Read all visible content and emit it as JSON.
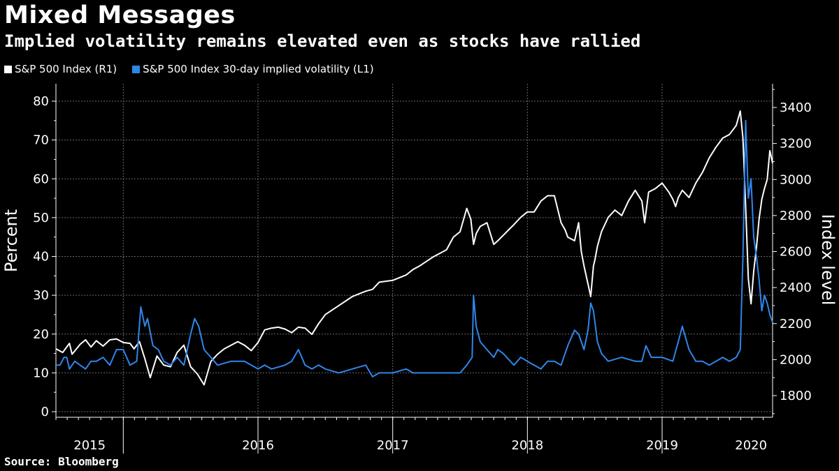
{
  "header": {
    "title": "Mixed Messages",
    "subtitle": "Implied volatility remains elevated even as stocks have rallied"
  },
  "footer": {
    "source": "Source: Bloomberg"
  },
  "colors": {
    "spx": "#ffffff",
    "vix": "#2f86ea",
    "grid": "#6a6a6a",
    "background": "#000000"
  },
  "chart_data": {
    "type": "line",
    "title": "Mixed Messages",
    "subtitle": "Implied volatility remains elevated even as stocks have rallied",
    "xlabel": "",
    "ylabel_left": "Percent",
    "ylabel_right": "Index level",
    "x_range": [
      2015.0,
      2020.32
    ],
    "ylim_left": [
      0,
      85
    ],
    "ylim_right": [
      1700,
      3500
    ],
    "left_ticks": [
      0,
      10,
      20,
      30,
      40,
      50,
      60,
      70,
      80
    ],
    "right_ticks": [
      1800,
      2000,
      2200,
      2400,
      2600,
      2800,
      3000,
      3200,
      3400
    ],
    "x_tick_labels": [
      "2015",
      "2016",
      "2017",
      "2018",
      "2019",
      "2020"
    ],
    "year_boundaries": [
      2015.5,
      2016.5,
      2017.5,
      2018.5,
      2019.5
    ],
    "year_label_positions": [
      2015.25,
      2016.5,
      2017.5,
      2018.5,
      2019.5,
      2020.16
    ],
    "grid": true,
    "legend_position": "top-left",
    "series": [
      {
        "name": "S&P 500 Index  (R1)",
        "axis": "right",
        "x": [
          2015.0,
          2015.05,
          2015.1,
          2015.12,
          2015.18,
          2015.22,
          2015.26,
          2015.3,
          2015.35,
          2015.4,
          2015.45,
          2015.5,
          2015.55,
          2015.58,
          2015.62,
          2015.66,
          2015.7,
          2015.75,
          2015.8,
          2015.85,
          2015.9,
          2015.95,
          2016.0,
          2016.05,
          2016.1,
          2016.15,
          2016.2,
          2016.25,
          2016.3,
          2016.35,
          2016.4,
          2016.45,
          2016.5,
          2016.55,
          2016.6,
          2016.65,
          2016.7,
          2016.75,
          2016.8,
          2016.85,
          2016.9,
          2016.95,
          2017.0,
          2017.1,
          2017.2,
          2017.3,
          2017.35,
          2017.4,
          2017.5,
          2017.6,
          2017.65,
          2017.7,
          2017.8,
          2017.9,
          2017.95,
          2018.0,
          2018.05,
          2018.08,
          2018.1,
          2018.12,
          2018.15,
          2018.2,
          2018.25,
          2018.28,
          2018.32,
          2018.36,
          2018.4,
          2018.45,
          2018.5,
          2018.55,
          2018.6,
          2018.65,
          2018.7,
          2018.75,
          2018.78,
          2018.8,
          2018.85,
          2018.88,
          2018.9,
          2018.92,
          2018.95,
          2018.97,
          2018.99,
          2019.0,
          2019.02,
          2019.05,
          2019.1,
          2019.15,
          2019.2,
          2019.25,
          2019.3,
          2019.35,
          2019.37,
          2019.4,
          2019.45,
          2019.5,
          2019.55,
          2019.58,
          2019.6,
          2019.62,
          2019.65,
          2019.7,
          2019.75,
          2019.8,
          2019.85,
          2019.9,
          2019.95,
          2020.0,
          2020.05,
          2020.08,
          2020.1,
          2020.12,
          2020.14,
          2020.16,
          2020.18,
          2020.2,
          2020.22,
          2020.24,
          2020.26,
          2020.28,
          2020.3,
          2020.32
        ],
        "values": [
          2060,
          2040,
          2090,
          2030,
          2085,
          2110,
          2070,
          2105,
          2075,
          2110,
          2115,
          2095,
          2090,
          2060,
          2100,
          2005,
          1900,
          2020,
          1970,
          1960,
          2040,
          2080,
          1960,
          1920,
          1860,
          1990,
          2030,
          2060,
          2080,
          2100,
          2080,
          2050,
          2095,
          2165,
          2175,
          2180,
          2170,
          2150,
          2180,
          2175,
          2140,
          2200,
          2250,
          2300,
          2350,
          2380,
          2390,
          2430,
          2440,
          2470,
          2500,
          2520,
          2570,
          2610,
          2680,
          2710,
          2840,
          2780,
          2640,
          2700,
          2740,
          2760,
          2640,
          2660,
          2690,
          2720,
          2750,
          2790,
          2820,
          2820,
          2880,
          2910,
          2910,
          2760,
          2720,
          2680,
          2660,
          2760,
          2600,
          2520,
          2420,
          2350,
          2520,
          2550,
          2630,
          2710,
          2790,
          2830,
          2800,
          2880,
          2940,
          2880,
          2760,
          2930,
          2950,
          2980,
          2930,
          2890,
          2850,
          2900,
          2940,
          2900,
          2980,
          3040,
          3120,
          3180,
          3230,
          3250,
          3300,
          3380,
          3230,
          2850,
          2450,
          2310,
          2490,
          2620,
          2780,
          2890,
          2950,
          3000,
          3160,
          3090
        ]
      },
      {
        "name": "S&P 500 Index 30-day implied volatility (L1)",
        "axis": "left",
        "x": [
          2015.0,
          2015.03,
          2015.06,
          2015.08,
          2015.1,
          2015.14,
          2015.18,
          2015.22,
          2015.26,
          2015.3,
          2015.35,
          2015.4,
          2015.45,
          2015.5,
          2015.55,
          2015.6,
          2015.63,
          2015.66,
          2015.68,
          2015.72,
          2015.76,
          2015.8,
          2015.85,
          2015.9,
          2015.95,
          2016.0,
          2016.03,
          2016.06,
          2016.1,
          2016.15,
          2016.2,
          2016.3,
          2016.4,
          2016.45,
          2016.5,
          2016.55,
          2016.6,
          2016.7,
          2016.75,
          2016.8,
          2016.85,
          2016.9,
          2016.95,
          2017.0,
          2017.1,
          2017.2,
          2017.3,
          2017.35,
          2017.4,
          2017.5,
          2017.6,
          2017.65,
          2017.7,
          2017.8,
          2017.9,
          2018.0,
          2018.05,
          2018.09,
          2018.1,
          2018.12,
          2018.15,
          2018.2,
          2018.25,
          2018.28,
          2018.32,
          2018.4,
          2018.45,
          2018.5,
          2018.55,
          2018.6,
          2018.65,
          2018.7,
          2018.75,
          2018.8,
          2018.85,
          2018.88,
          2018.92,
          2018.95,
          2018.97,
          2018.99,
          2019.02,
          2019.05,
          2019.1,
          2019.2,
          2019.3,
          2019.35,
          2019.38,
          2019.42,
          2019.5,
          2019.58,
          2019.62,
          2019.65,
          2019.7,
          2019.75,
          2019.8,
          2019.85,
          2019.9,
          2019.95,
          2020.0,
          2020.05,
          2020.08,
          2020.1,
          2020.12,
          2020.14,
          2020.16,
          2020.18,
          2020.2,
          2020.22,
          2020.24,
          2020.26,
          2020.28,
          2020.3,
          2020.32
        ],
        "values": [
          12,
          12,
          14,
          14,
          11,
          13,
          12,
          11,
          13,
          13,
          14,
          12,
          16,
          16,
          12,
          13,
          27,
          22,
          24,
          17,
          16,
          13,
          12,
          14,
          12,
          20,
          24,
          22,
          16,
          14,
          12,
          13,
          13,
          12,
          11,
          12,
          11,
          12,
          13,
          16,
          12,
          11,
          12,
          11,
          10,
          11,
          12,
          9,
          10,
          10,
          11,
          10,
          10,
          10,
          10,
          10,
          12,
          14,
          30,
          22,
          18,
          16,
          14,
          16,
          15,
          12,
          14,
          13,
          12,
          11,
          13,
          13,
          12,
          17,
          21,
          20,
          16,
          21,
          28,
          26,
          18,
          15,
          13,
          14,
          13,
          13,
          17,
          14,
          14,
          13,
          18,
          22,
          16,
          13,
          13,
          12,
          13,
          14,
          13,
          14,
          16,
          40,
          75,
          55,
          60,
          45,
          40,
          34,
          26,
          30,
          28,
          25,
          23
        ]
      }
    ]
  }
}
